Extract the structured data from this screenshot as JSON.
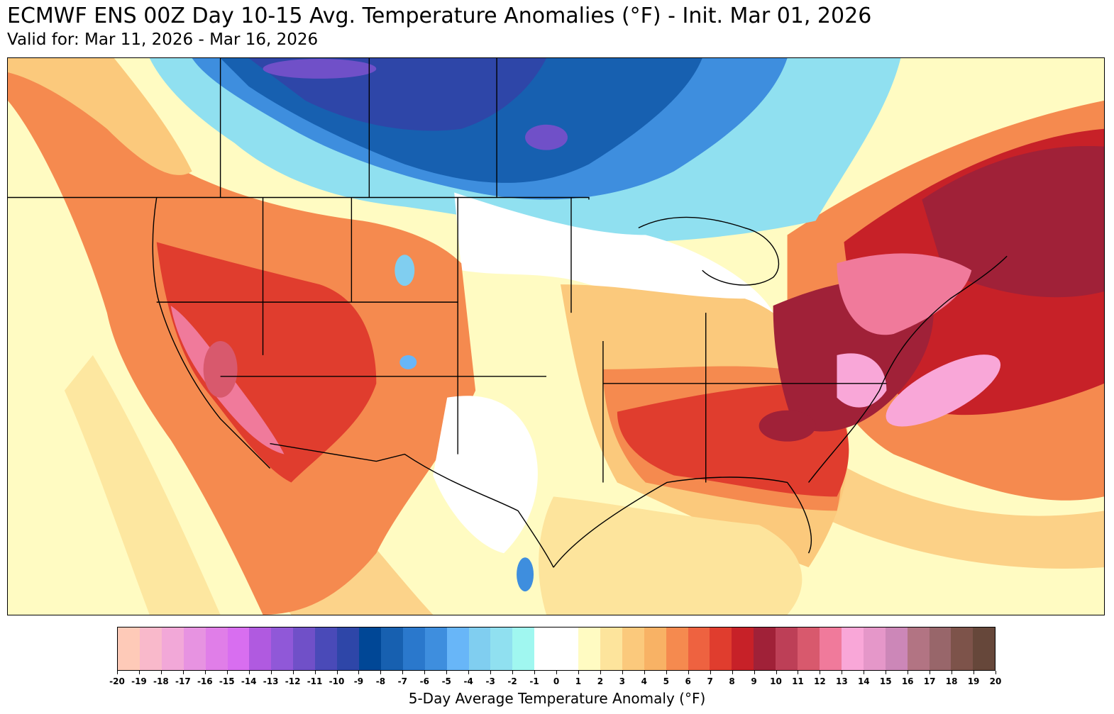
{
  "header": {
    "title": "ECMWF ENS 00Z Day 10-15 Avg. Temperature Anomalies (°F) - Init. Mar 01, 2026",
    "subtitle": "Valid for: Mar 11, 2026 - Mar 16, 2026"
  },
  "map": {
    "region": "Continental United States, southern Canada, northern Mexico",
    "colors": {
      "ocean_neutral": "#fffbc2",
      "warm_light": "#fde49c",
      "warm_mid": "#f8b265",
      "warm_orange": "#f58a4f",
      "warm_red": "#e03d2e",
      "warm_darkred": "#a02138",
      "warm_pink": "#f996c8",
      "neutral": "#ffffff",
      "cold_light": "#a0f7f0",
      "cold_mid": "#3d8ade",
      "cold_dark": "#1759b0",
      "cold_deep": "#2643a0",
      "cold_purple": "#6a4fc9"
    }
  },
  "colorbar": {
    "label": "5-Day Average Temperature Anomaly (°F)",
    "ticks": [
      "-20",
      "-19",
      "-18",
      "-17",
      "-16",
      "-15",
      "-14",
      "-13",
      "-12",
      "-11",
      "-10",
      "-9",
      "-8",
      "-7",
      "-6",
      "-5",
      "-4",
      "-3",
      "-2",
      "-1",
      "0",
      "1",
      "2",
      "3",
      "4",
      "5",
      "6",
      "7",
      "8",
      "9",
      "10",
      "11",
      "12",
      "13",
      "14",
      "15",
      "16",
      "17",
      "18",
      "19",
      "20"
    ],
    "colors": [
      "#fecab8",
      "#f9b9cb",
      "#f2a8d8",
      "#e793e1",
      "#e07ee8",
      "#d86ef0",
      "#b05ae0",
      "#9058d8",
      "#7050c8",
      "#4a4ab8",
      "#2e46a8",
      "#004796",
      "#1760b0",
      "#2a78cc",
      "#3e8ede",
      "#68b6f8",
      "#80cef0",
      "#90e0f0",
      "#a0f7f0",
      "#ffffff",
      "#ffffff",
      "#fffbc2",
      "#fde49c",
      "#fbc97c",
      "#f8b265",
      "#f58a4f",
      "#ee6240",
      "#e03d2e",
      "#c72128",
      "#a02138",
      "#bd3f57",
      "#d8596d",
      "#f07a9b",
      "#f9a7d8",
      "#e597c9",
      "#cc87b8",
      "#b27483",
      "#98666a",
      "#7d534a",
      "#66473a"
    ]
  }
}
